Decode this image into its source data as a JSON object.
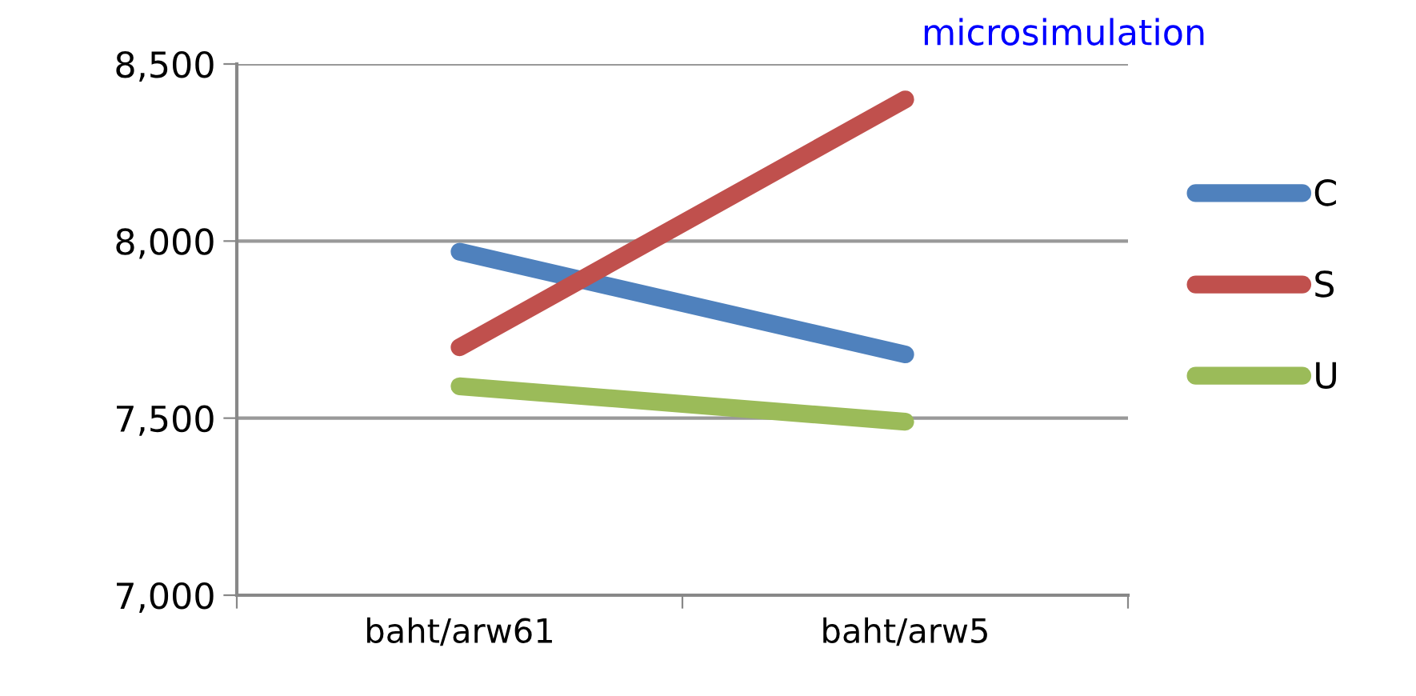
{
  "chart_data": {
    "type": "line",
    "title": "microsimulation",
    "categories": [
      "baht/arw61",
      "baht/arw5"
    ],
    "series": [
      {
        "name": "C",
        "color": "#4f81bd",
        "values": [
          7970,
          7680
        ]
      },
      {
        "name": "S",
        "color": "#c0504d",
        "values": [
          7700,
          8400
        ]
      },
      {
        "name": "U",
        "color": "#9bbb59",
        "values": [
          7590,
          7490
        ]
      }
    ],
    "ylim": [
      7000,
      8500
    ],
    "yticks": [
      {
        "value": 7000,
        "label": "7,000"
      },
      {
        "value": 7500,
        "label": "7,500"
      },
      {
        "value": 8000,
        "label": "8,000"
      },
      {
        "value": 8500,
        "label": "8,500"
      }
    ],
    "grid": "y",
    "legend": "right",
    "line_style": "solid"
  }
}
